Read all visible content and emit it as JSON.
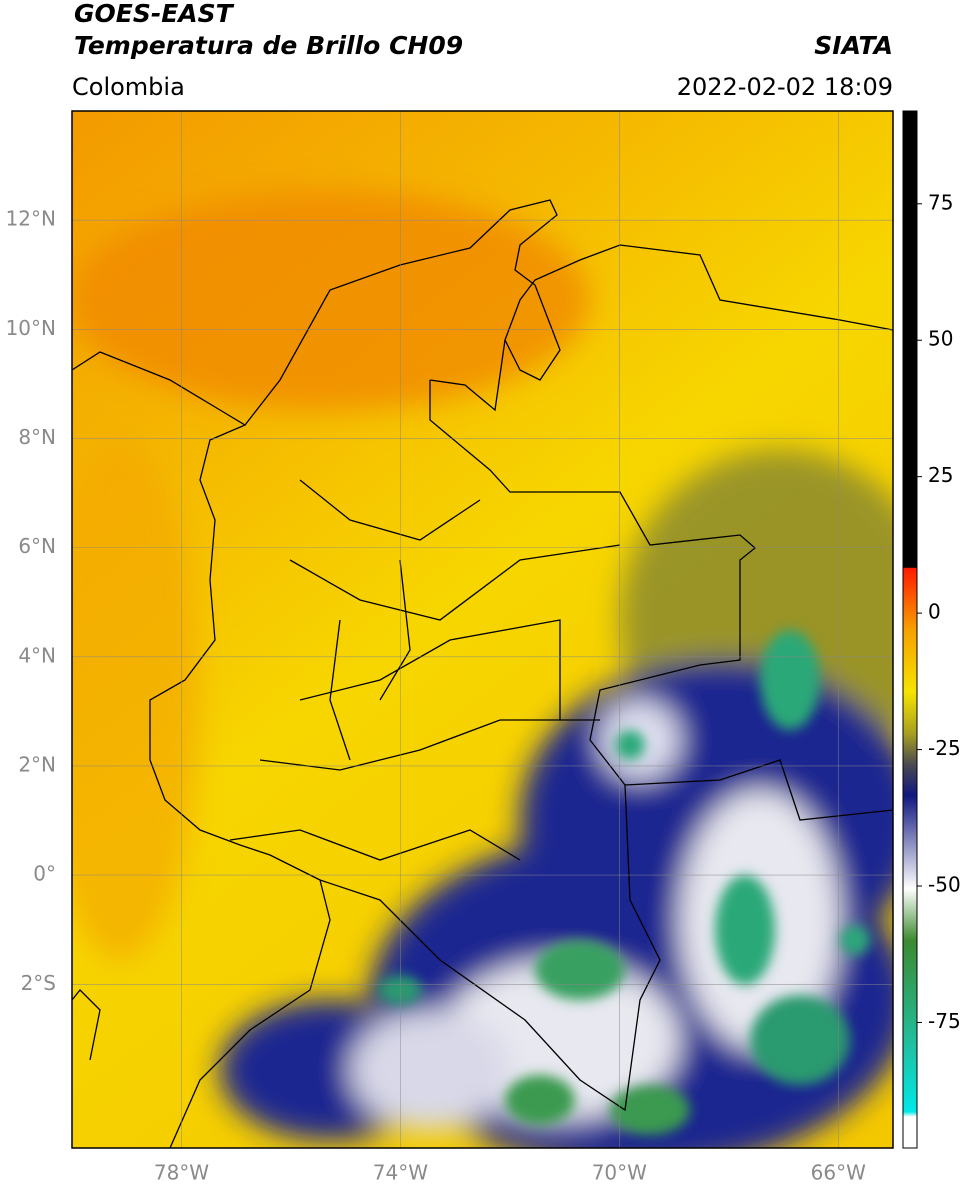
{
  "header": {
    "title": "GOES-EAST",
    "subtitle": "Temperatura de Brillo CH09",
    "source": "SIATA",
    "region": "Colombia",
    "datetime": "2022-02-02 18:09"
  },
  "map": {
    "lonlim": [
      -80,
      -65
    ],
    "latlim": [
      -5,
      14
    ],
    "grid": true,
    "lonticks": [
      {
        "value": -78,
        "label": "78°W"
      },
      {
        "value": -74,
        "label": "74°W"
      },
      {
        "value": -70,
        "label": "70°W"
      },
      {
        "value": -66,
        "label": "66°W"
      }
    ],
    "latticks": [
      {
        "value": 12,
        "label": "12°N"
      },
      {
        "value": 10,
        "label": "10°N"
      },
      {
        "value": 8,
        "label": "8°N"
      },
      {
        "value": 6,
        "label": "6°N"
      },
      {
        "value": 4,
        "label": "4°N"
      },
      {
        "value": 2,
        "label": "2°N"
      },
      {
        "value": 0,
        "label": "0°"
      },
      {
        "value": -2,
        "label": "2°S"
      }
    ]
  },
  "colorbar": {
    "lim": [
      -98,
      92
    ],
    "ticks": [
      75,
      50,
      25,
      0,
      -25,
      -50,
      -75
    ]
  }
}
